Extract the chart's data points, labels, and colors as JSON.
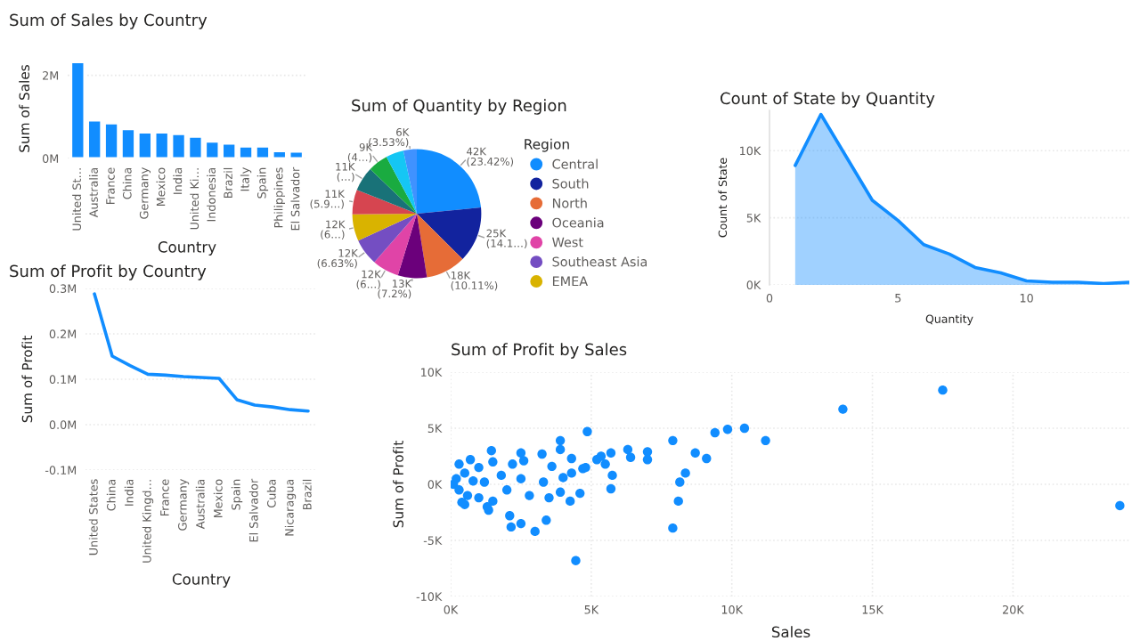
{
  "chart_data": [
    {
      "type": "bar",
      "title": "Sum of Sales by Country",
      "xlabel": "Country",
      "ylabel": "Sum of Sales",
      "categories": [
        "United St…",
        "Australia",
        "France",
        "China",
        "Germany",
        "Mexico",
        "India",
        "United Ki…",
        "Indonesia",
        "Brazil",
        "Italy",
        "Spain",
        "Philippines",
        "El Salvador"
      ],
      "values": [
        2.32,
        0.92,
        0.85,
        0.71,
        0.63,
        0.63,
        0.59,
        0.53,
        0.41,
        0.36,
        0.29,
        0.29,
        0.18,
        0.17
      ],
      "color": "#118dff",
      "ylim": [
        0,
        2.4
      ],
      "yticks": [
        {
          "value": 0,
          "label": "0M"
        },
        {
          "value": 2,
          "label": "2M"
        }
      ],
      "grid": "y"
    },
    {
      "type": "line",
      "title": "Sum of Profit by Country",
      "xlabel": "Country",
      "ylabel": "Sum of Profit",
      "categories": [
        "United States",
        "China",
        "India",
        "United Kingd…",
        "France",
        "Germany",
        "Australia",
        "Mexico",
        "Spain",
        "El Salvador",
        "Cuba",
        "Nicaragua",
        "Brazil"
      ],
      "values": [
        0.288,
        0.151,
        0.13,
        0.111,
        0.109,
        0.106,
        0.104,
        0.102,
        0.055,
        0.043,
        0.039,
        0.033,
        0.03
      ],
      "color": "#118dff",
      "ylim": [
        -0.1,
        0.3
      ],
      "yticks": [
        {
          "value": -0.1,
          "label": "-0.1M"
        },
        {
          "value": 0.0,
          "label": "0.0M"
        },
        {
          "value": 0.1,
          "label": "0.1M"
        },
        {
          "value": 0.2,
          "label": "0.2M"
        },
        {
          "value": 0.3,
          "label": "0.3M"
        }
      ],
      "grid": "y"
    },
    {
      "type": "pie",
      "title": "Sum of Quantity by Region",
      "legend_title": "Region",
      "legend": "right",
      "categories": [
        "Central",
        "South",
        "North",
        "Oceania",
        "West",
        "Southeast Asia",
        "EMEA",
        null,
        null,
        null,
        null,
        null
      ],
      "values": [
        42000,
        25000,
        18000,
        13000,
        12000,
        12000,
        12000,
        11000,
        11000,
        9000,
        8000,
        6000
      ],
      "colors": [
        "#118dff",
        "#12239e",
        "#e66c37",
        "#6b007b",
        "#e044a7",
        "#744ec2",
        "#d9b300",
        "#d64550",
        "#197278",
        "#1aab40",
        "#15c6f4",
        "#4092ff"
      ],
      "value_labels": [
        "42K (23.42%)",
        "25K (14.1…)",
        "18K (10.11%)",
        "13K (7.2%)",
        "12K (6…)",
        "12K (6.63%)",
        "12K (6…)",
        "11K (5.9…)",
        "11K (…)",
        "9K (4…)",
        null,
        "6K (3.53%)"
      ]
    },
    {
      "type": "area",
      "title": "Count of State by Quantity",
      "xlabel": "Quantity",
      "ylabel": "Count of State",
      "x": [
        1,
        2,
        3,
        4,
        5,
        6,
        7,
        8,
        9,
        10,
        11,
        12,
        13,
        14
      ],
      "values": [
        8.9,
        12.7,
        9.5,
        6.3,
        4.8,
        3.0,
        2.3,
        1.3,
        0.9,
        0.3,
        0.2,
        0.2,
        0.1,
        0.2
      ],
      "color": "#118dff",
      "xlim": [
        0,
        14
      ],
      "xticks": [
        0,
        5,
        10
      ],
      "ylim": [
        0,
        13
      ],
      "yticks": [
        {
          "value": 0,
          "label": "0K"
        },
        {
          "value": 5,
          "label": "5K"
        },
        {
          "value": 10,
          "label": "10K"
        }
      ],
      "grid": "y"
    },
    {
      "type": "scatter",
      "title": "Sum of Profit by Sales",
      "xlabel": "Sales",
      "ylabel": "Sum of Profit",
      "color": "#118dff",
      "x": [
        4.86,
        3.9,
        3.9,
        6.3,
        6.4,
        7.0,
        7.0,
        7.9,
        9.4,
        9.85,
        10.45,
        11.2,
        13.95,
        17.5,
        23.8,
        8.7,
        9.1,
        8.35,
        8.15,
        8.1,
        7.9,
        4.45,
        3.0,
        3.4,
        2.15,
        2.5,
        4.25,
        5.7,
        5.75,
        5.7,
        5.35,
        1.45,
        2.5,
        3.25,
        4.3,
        4.7,
        2.1,
        1.35,
        0.5,
        3.9,
        4.6,
        0.1,
        0.2,
        0.3,
        0.5,
        0.6,
        0.8,
        1.0,
        1.0,
        1.2,
        1.5,
        1.5,
        1.8,
        2.0,
        2.2,
        2.5,
        2.8,
        3.3,
        3.6,
        4.0,
        4.3,
        4.8,
        5.2,
        5.5,
        0.3,
        0.4,
        0.7,
        1.3,
        2.6,
        3.5
      ],
      "values": [
        4.7,
        3.9,
        3.1,
        3.1,
        2.4,
        2.9,
        2.2,
        3.9,
        4.6,
        4.9,
        5.0,
        3.9,
        6.7,
        8.4,
        -1.9,
        2.8,
        2.3,
        1.0,
        0.2,
        -1.5,
        -3.9,
        -6.8,
        -4.2,
        -3.2,
        -3.8,
        -3.5,
        -1.5,
        -0.4,
        0.8,
        2.8,
        2.5,
        3.0,
        2.8,
        2.7,
        2.3,
        1.4,
        -2.8,
        -2.3,
        -1.8,
        -0.7,
        -0.8,
        0.0,
        0.5,
        -0.5,
        1.0,
        -1.0,
        0.3,
        1.5,
        -1.2,
        0.2,
        2.0,
        -1.5,
        0.8,
        -0.5,
        1.8,
        0.5,
        -1.0,
        0.2,
        1.6,
        0.6,
        1.0,
        1.5,
        2.2,
        1.8,
        1.8,
        -1.6,
        2.2,
        -2.0,
        2.1,
        -1.2
      ],
      "xlim": [
        0,
        24.2
      ],
      "xticks": [
        {
          "value": 0,
          "label": "0K"
        },
        {
          "value": 5,
          "label": "5K"
        },
        {
          "value": 10,
          "label": "10K"
        },
        {
          "value": 15,
          "label": "15K"
        },
        {
          "value": 20,
          "label": "20K"
        }
      ],
      "ylim": [
        -10,
        10
      ],
      "yticks": [
        {
          "value": -10,
          "label": "-10K"
        },
        {
          "value": -5,
          "label": "-5K"
        },
        {
          "value": 0,
          "label": "0K"
        },
        {
          "value": 5,
          "label": "5K"
        },
        {
          "value": 10,
          "label": "10K"
        }
      ],
      "grid": true
    }
  ]
}
